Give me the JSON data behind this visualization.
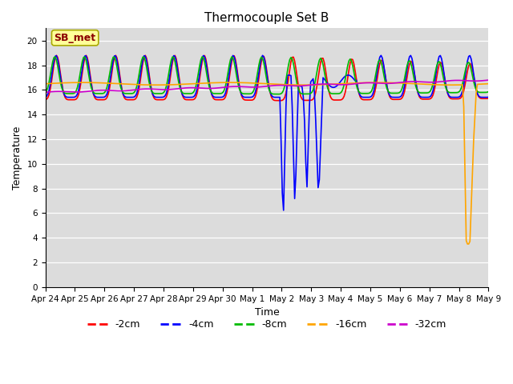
{
  "title": "Thermocouple Set B",
  "xlabel": "Time",
  "ylabel": "Temperature",
  "ylim": [
    0,
    21
  ],
  "yticks": [
    0,
    2,
    4,
    6,
    8,
    10,
    12,
    14,
    16,
    18,
    20
  ],
  "bg_color": "#dcdcdc",
  "fig_color": "#ffffff",
  "annotation_text": "SB_met",
  "annotation_color": "#8b0000",
  "annotation_bg": "#ffff99",
  "lines": [
    {
      "label": "-2cm",
      "color": "#ff0000",
      "lw": 1.2
    },
    {
      "label": "-4cm",
      "color": "#0000ff",
      "lw": 1.2
    },
    {
      "label": "-8cm",
      "color": "#00bb00",
      "lw": 1.2
    },
    {
      "label": "-16cm",
      "color": "#ffa500",
      "lw": 1.2
    },
    {
      "label": "-32cm",
      "color": "#cc00cc",
      "lw": 1.2
    }
  ],
  "xtick_labels": [
    "Apr 24",
    "Apr 25",
    "Apr 26",
    "Apr 27",
    "Apr 28",
    "Apr 29",
    "Apr 30",
    "May 1",
    "May 2",
    "May 3",
    "May 4",
    "May 5",
    "May 6",
    "May 7",
    "May 8",
    "May 9"
  ],
  "title_fontsize": 11,
  "axis_fontsize": 9,
  "tick_fontsize": 7.5,
  "legend_fontsize": 9
}
